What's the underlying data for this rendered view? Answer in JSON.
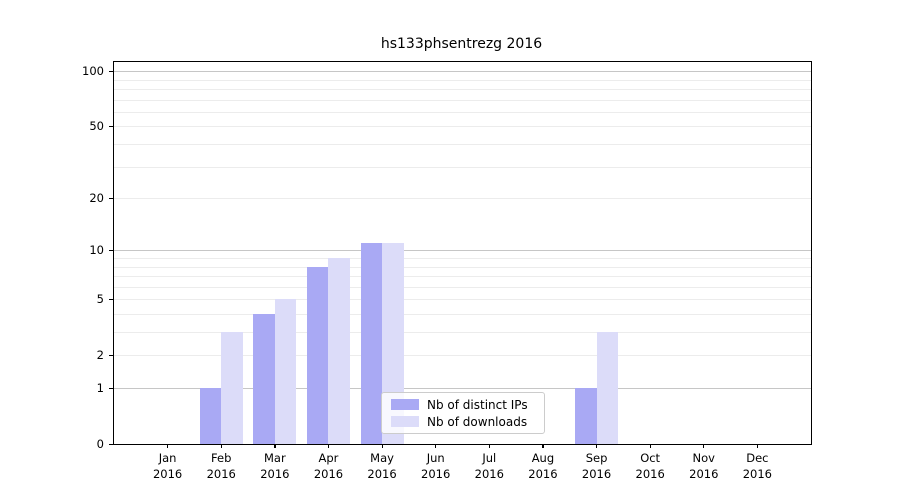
{
  "title": "hs133phsentrezg 2016",
  "legend": {
    "items": [
      {
        "label": "Nb of distinct IPs",
        "swatch": "dark-bar-swatch"
      },
      {
        "label": "Nb of downloads",
        "swatch": "light-bar-swatch"
      }
    ]
  },
  "chart_data": {
    "type": "bar",
    "title": "hs133phsentrezg 2016",
    "x_months": [
      "Jan",
      "Feb",
      "Mar",
      "Apr",
      "May",
      "Jun",
      "Jul",
      "Aug",
      "Sep",
      "Oct",
      "Nov",
      "Dec"
    ],
    "x_year": "2016",
    "series": [
      {
        "name": "Nb of distinct IPs",
        "color": "#a9a9f4",
        "values": [
          0,
          1,
          4,
          8,
          11,
          0,
          0,
          0,
          1,
          0,
          0,
          0
        ]
      },
      {
        "name": "Nb of downloads",
        "color": "#dcdcf9",
        "values": [
          0,
          3,
          5,
          9,
          11,
          0,
          0,
          0,
          3,
          0,
          0,
          0
        ]
      }
    ],
    "y_axis": {
      "scale": "log10(1+v)",
      "tick_values": [
        0,
        1,
        2,
        5,
        10,
        20,
        50,
        100
      ],
      "major_grid_values": [
        1,
        10,
        100
      ],
      "minor_grid_values": [
        2,
        3,
        4,
        5,
        6,
        7,
        8,
        9,
        20,
        30,
        40,
        50,
        60,
        70,
        80,
        90
      ],
      "ylim": [
        0,
        113
      ]
    },
    "legend_position": "lower center",
    "grid": true,
    "colors": {
      "major_grid": "#c6c6c6",
      "minor_grid": "#ececec",
      "spine": "#000000",
      "background": "#ffffff"
    }
  }
}
